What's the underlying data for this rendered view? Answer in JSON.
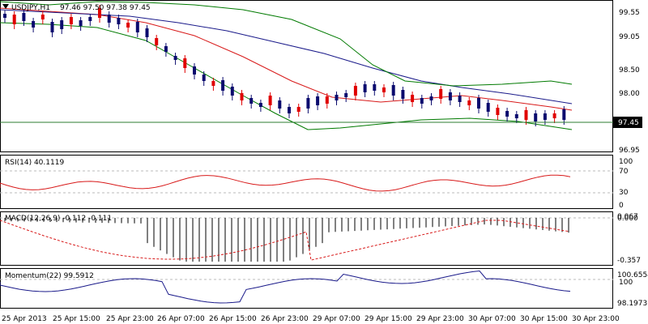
{
  "main": {
    "symbol": "USDJPY,H1",
    "ohlc": "97.46 97.50 97.38 97.45",
    "price_ticks": [
      "99.55",
      "99.05",
      "98.50",
      "98.00",
      "97.45",
      "96.95"
    ],
    "current_price": "97.45"
  },
  "rsi": {
    "label": "RSI(14) 40.1119",
    "ticks": [
      "100",
      "70",
      "30",
      "0"
    ]
  },
  "macd": {
    "label": "MACD(12,26,9) -0.112 -0.111",
    "ticks": [
      "0.067",
      "0.000",
      "-0.357"
    ]
  },
  "momentum": {
    "label": "Momentum(22) 99.5912",
    "ticks": [
      "100.6554",
      "100",
      "98.1973"
    ]
  },
  "time_axis": [
    "25 Apr 2013",
    "25 Apr 15:00",
    "25 Apr 23:00",
    "26 Apr 07:00",
    "26 Apr 15:00",
    "26 Apr 23:00",
    "29 Apr 07:00",
    "29 Apr 15:00",
    "29 Apr 23:00",
    "30 Apr 07:00",
    "30 Apr 15:00",
    "30 Apr 23:00"
  ],
  "colors": {
    "bull": "#0b0b6e",
    "bear": "#e00000",
    "ma_red": "#d81a1a",
    "ma_blue": "#1a1a8a",
    "band_green": "#007a00"
  }
}
